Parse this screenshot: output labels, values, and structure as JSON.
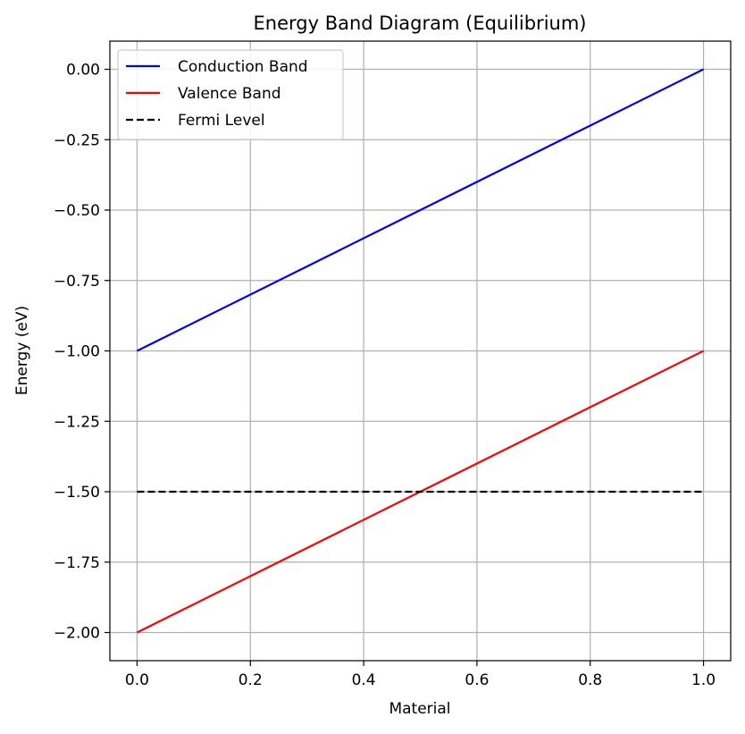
{
  "chart_data": {
    "type": "line",
    "title": "Energy Band Diagram (Equilibrium)",
    "xlabel": "Material",
    "ylabel": "Energy (eV)",
    "xlim": [
      -0.048,
      1.048
    ],
    "ylim": [
      -2.1,
      0.1
    ],
    "x_ticks": [
      0.0,
      0.2,
      0.4,
      0.6,
      0.8,
      1.0
    ],
    "x_tick_labels": [
      "0.0",
      "0.2",
      "0.4",
      "0.6",
      "0.8",
      "1.0"
    ],
    "y_ticks": [
      0.0,
      -0.25,
      -0.5,
      -0.75,
      -1.0,
      -1.25,
      -1.5,
      -1.75,
      -2.0
    ],
    "y_tick_labels": [
      "0.00",
      "−0.25",
      "−0.50",
      "−0.75",
      "−1.00",
      "−1.25",
      "−1.50",
      "−1.75",
      "−2.00"
    ],
    "grid": true,
    "legend_position": "top-left",
    "series": [
      {
        "name": "Conduction Band",
        "color": "#0000ff",
        "style": "solid",
        "x": [
          0,
          1
        ],
        "y": [
          -1.0,
          0.0
        ]
      },
      {
        "name": "Valence Band",
        "color": "#ff0000",
        "style": "solid",
        "x": [
          0,
          1
        ],
        "y": [
          -2.0,
          -1.0
        ]
      },
      {
        "name": "Fermi Level",
        "color": "#000000",
        "style": "dashed",
        "x": [
          0,
          1
        ],
        "y": [
          -1.5,
          -1.5
        ]
      }
    ]
  }
}
